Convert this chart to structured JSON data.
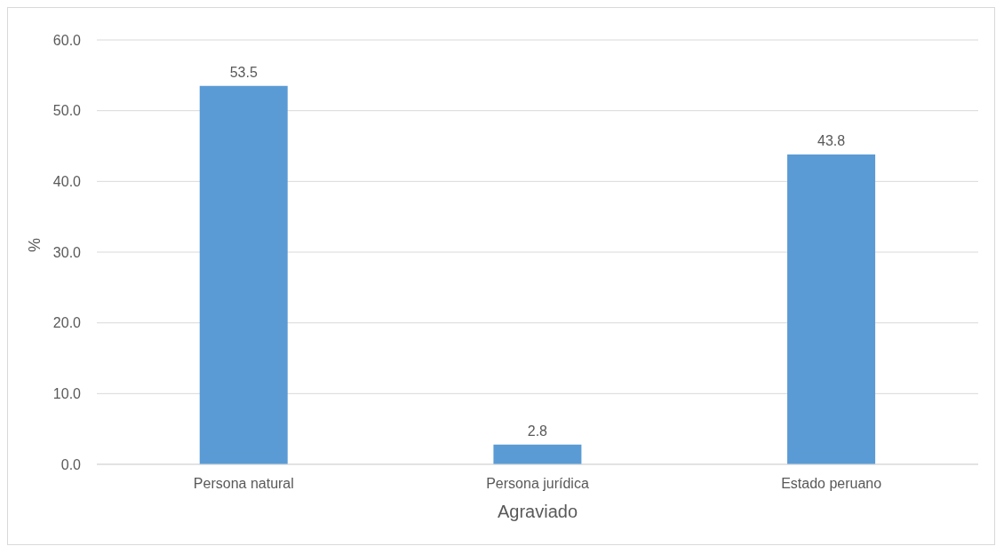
{
  "chart_data": {
    "type": "bar",
    "xlabel": "Agraviado",
    "ylabel": "%",
    "categories": [
      "Persona natural",
      "Persona jurídica",
      "Estado peruano"
    ],
    "values": [
      53.5,
      2.8,
      43.8
    ],
    "color": "#5b9bd5",
    "ylim": [
      0,
      60
    ],
    "yticks": [
      {
        "value": 0,
        "label": "0.0"
      },
      {
        "value": 10,
        "label": "10.0"
      },
      {
        "value": 20,
        "label": "20.0"
      },
      {
        "value": 30,
        "label": "30.0"
      },
      {
        "value": 40,
        "label": "40.0"
      },
      {
        "value": 50,
        "label": "50.0"
      },
      {
        "value": 60,
        "label": "60.0"
      }
    ],
    "grid": "y",
    "data_labels": true
  }
}
